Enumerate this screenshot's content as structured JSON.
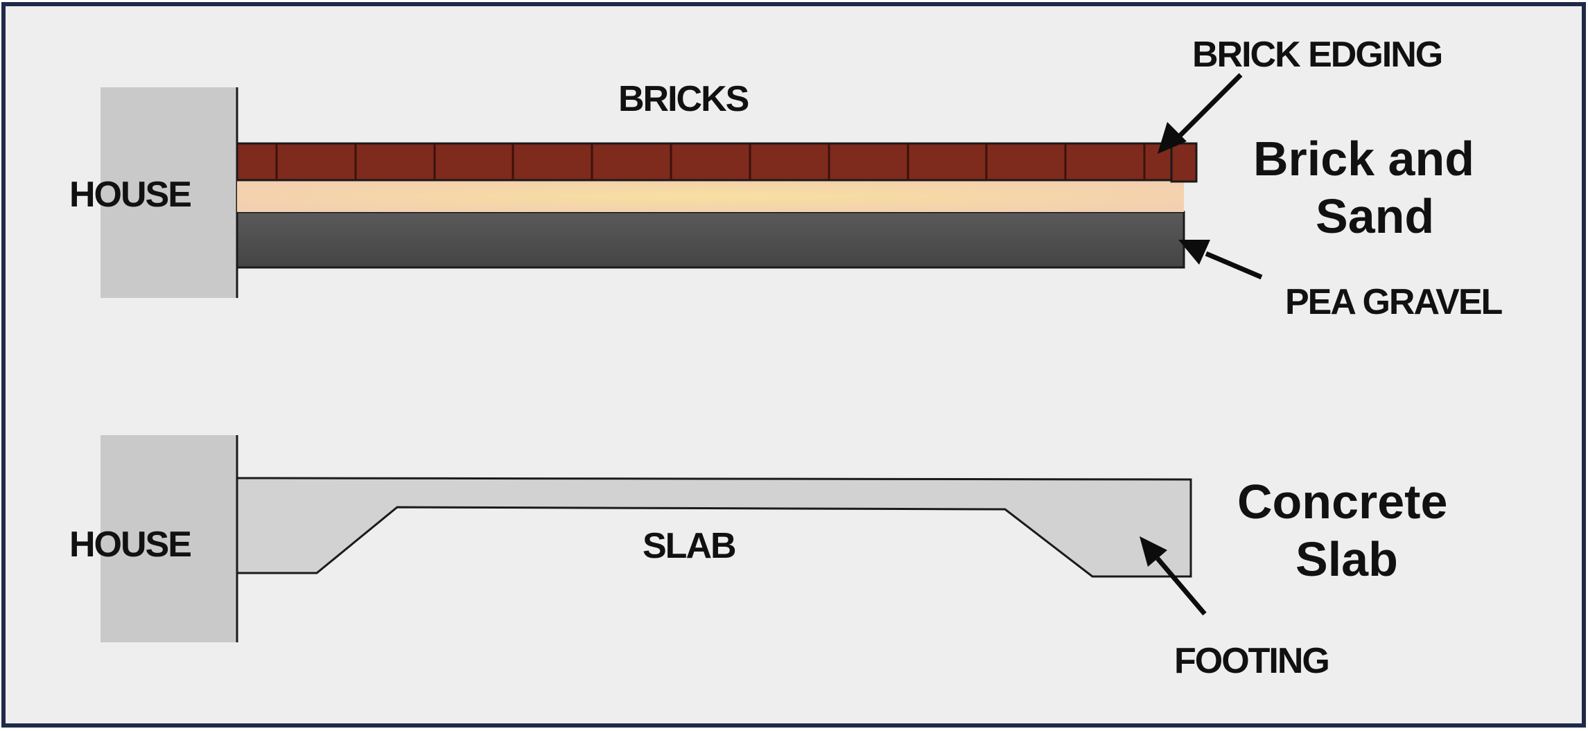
{
  "brick_and_sand": {
    "house_label": "HOUSE",
    "bricks_label": "BRICKS",
    "brick_edging_label": "BRICK EDGING",
    "pea_gravel_label": "PEA GRAVEL",
    "title_line1": "Brick and",
    "title_line2": "Sand"
  },
  "concrete_slab": {
    "house_label": "HOUSE",
    "slab_label": "SLAB",
    "footing_label": "FOOTING",
    "title_line1": "Concrete",
    "title_line2": "Slab"
  },
  "colors": {
    "background": "#eeeeee",
    "frame": "#1f2a4a",
    "house": "#c9c9c9",
    "brick": "#7e2a1c",
    "sand": "#f5d3b3",
    "pea_gravel": "#4f4f4f",
    "slab": "#d2d2d2"
  },
  "brick_count": 12
}
